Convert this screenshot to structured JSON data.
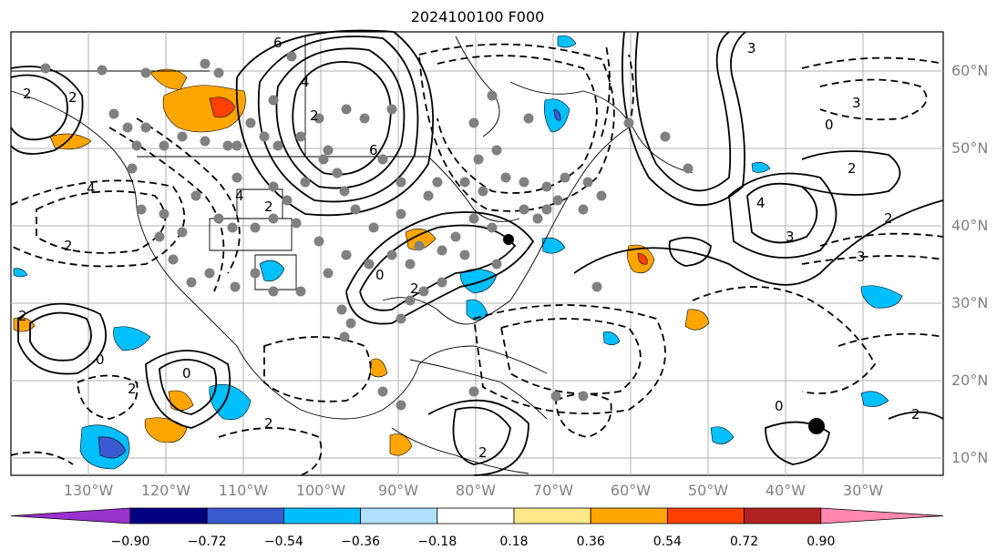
{
  "title": "2024100100 F000",
  "lat_labels": [
    "60°N",
    "50°N",
    "40°N",
    "30°N",
    "20°N",
    "10°N"
  ],
  "lon_labels": [
    "130°W",
    "120°W",
    "110°W",
    "100°W",
    "90°W",
    "80°W",
    "70°W",
    "60°W",
    "50°W",
    "40°W",
    "30°W"
  ],
  "colorbar": {
    "ticks": [
      "−0.90",
      "−0.72",
      "−0.54",
      "−0.36",
      "−0.18",
      "0.18",
      "0.36",
      "0.54",
      "0.72",
      "0.90"
    ],
    "colors": [
      "#9a32cd",
      "#000080",
      "#3a5bd0",
      "#00bfff",
      "#b0e0ff",
      "#ffffff",
      "#ffe88a",
      "#ffa500",
      "#ff4000",
      "#b22222",
      "#ff88b0"
    ]
  },
  "contour_labels": [
    "6",
    "2",
    "4",
    "2",
    "0",
    "3",
    "0",
    "4",
    "2",
    "3",
    "3",
    "2",
    "2",
    "0",
    "2",
    "4",
    "2",
    "2",
    "0",
    "2",
    "0",
    "6",
    "4",
    "3",
    "2",
    "2",
    "2",
    "2"
  ]
}
